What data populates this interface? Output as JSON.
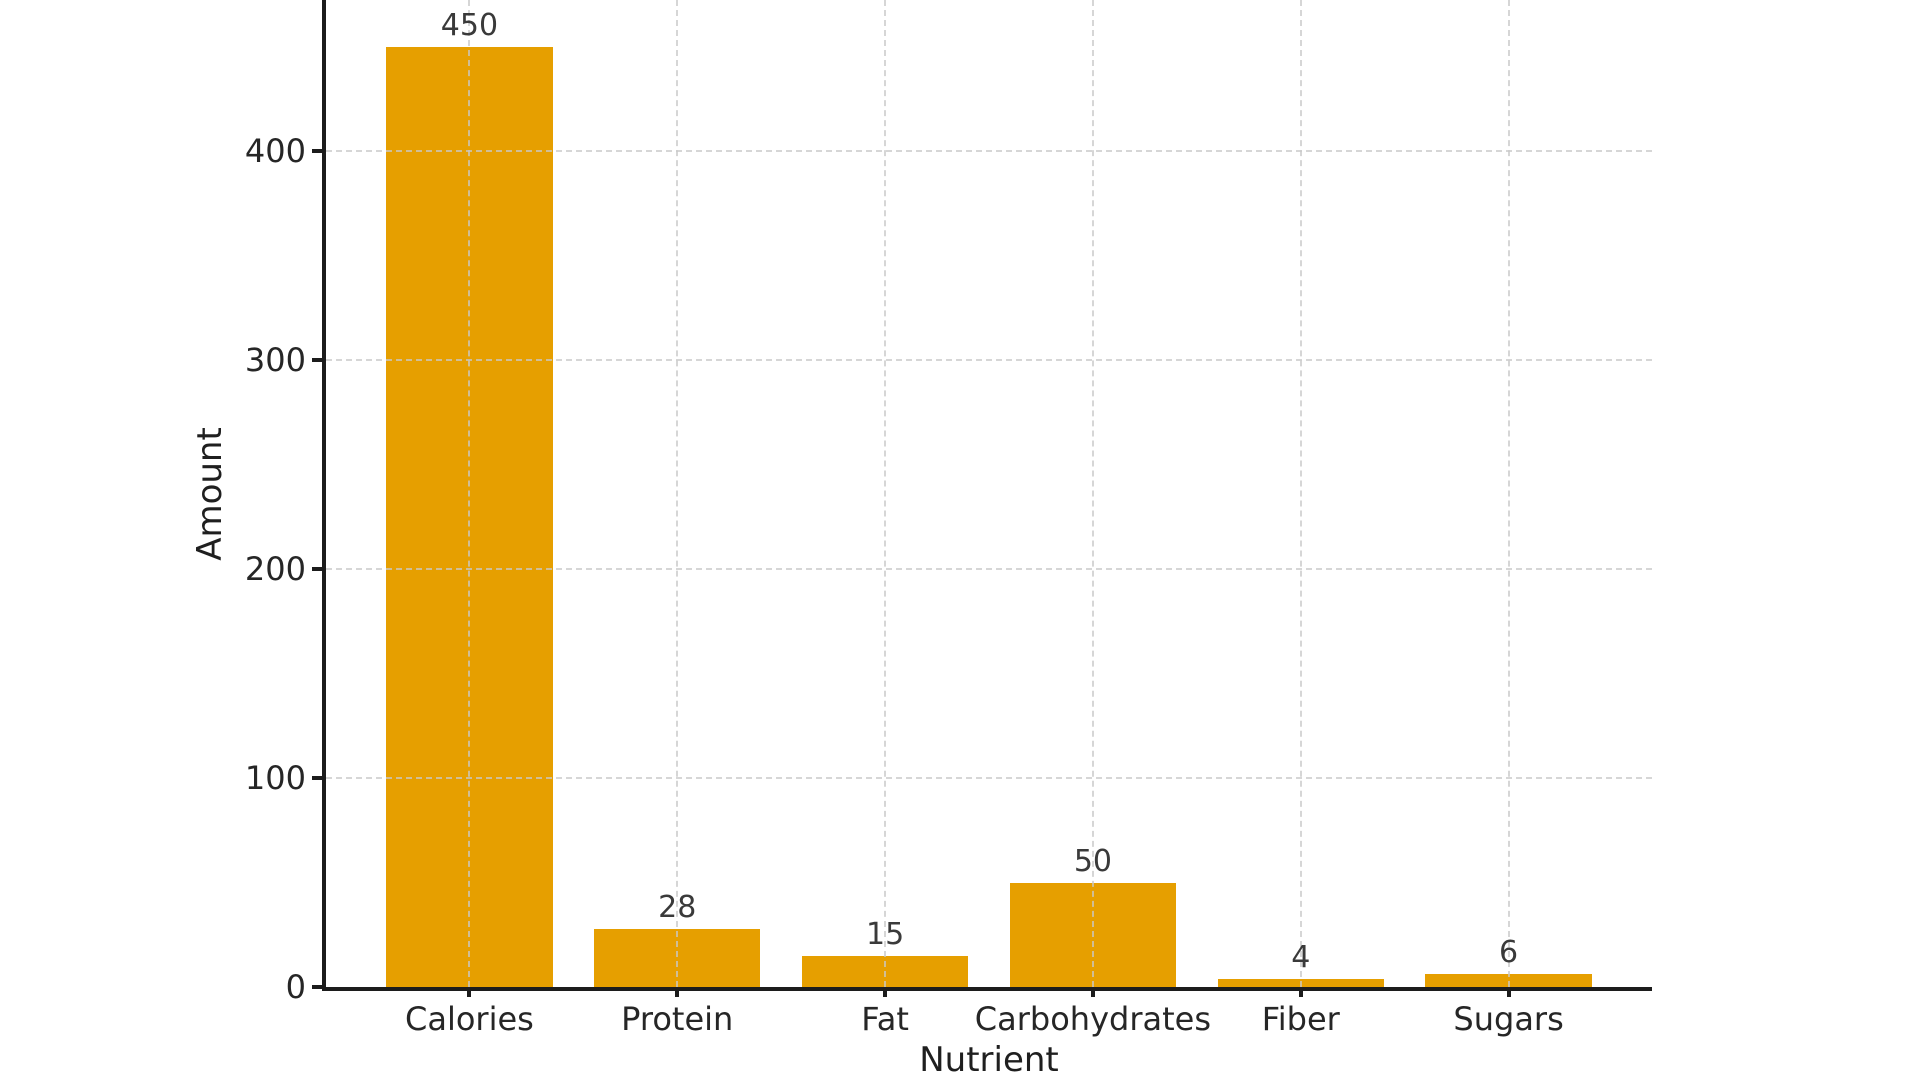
{
  "chart_data": {
    "type": "bar",
    "title": "",
    "xlabel": "Nutrient",
    "ylabel": "Amount",
    "categories": [
      "Calories",
      "Protein",
      "Fat",
      "Carbohydrates",
      "Fiber",
      "Sugars"
    ],
    "values": [
      450,
      28,
      15,
      50,
      4,
      6
    ],
    "value_labels": [
      "450",
      "28",
      "15",
      "50",
      "4",
      "6"
    ],
    "yticks": [
      0,
      100,
      200,
      300,
      400
    ],
    "ylim": [
      0,
      472.5
    ],
    "bar_color": "#E69F00",
    "background_color": "#ffffff",
    "grid": "dashed gridlines on both axes, light gray, drawn over bars",
    "gridline_color": "#c8c8c8",
    "axis_color": "#1c1c1c",
    "text_color": "#262626",
    "legend": "none"
  }
}
